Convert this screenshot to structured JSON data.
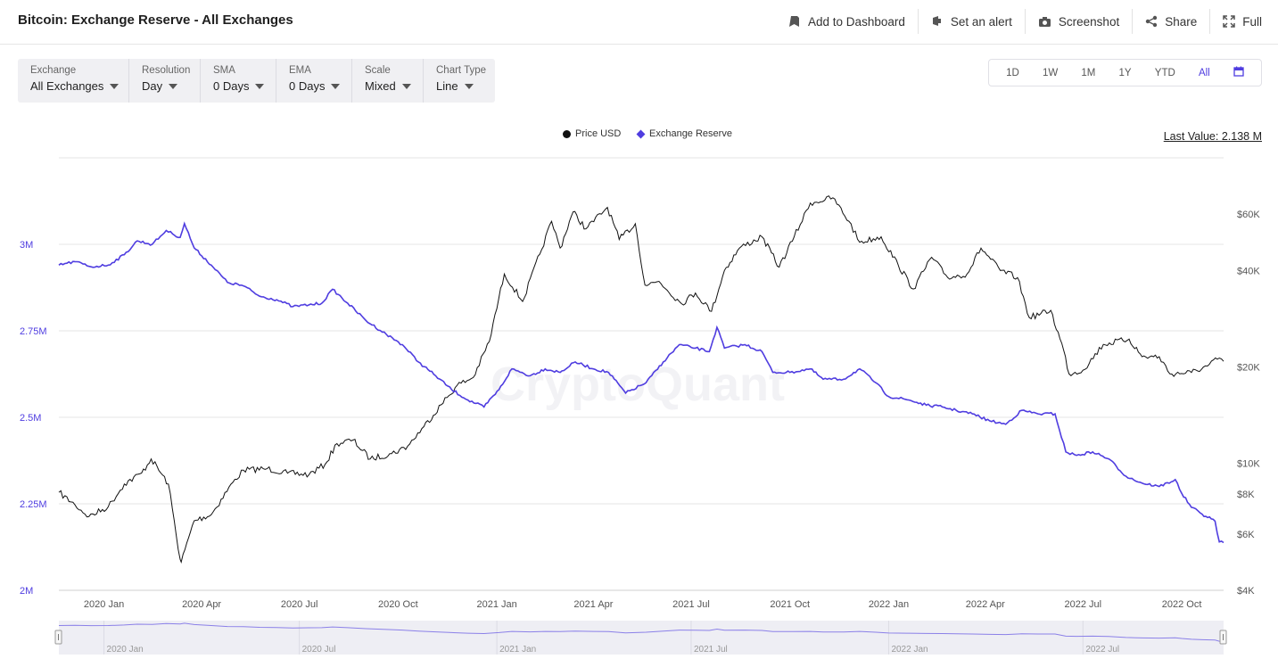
{
  "header": {
    "title": "Bitcoin: Exchange Reserve - All Exchanges",
    "actions": [
      "Add to Dashboard",
      "Set an alert",
      "Screenshot",
      "Share",
      "Full"
    ]
  },
  "controls": [
    {
      "label": "Exchange",
      "value": "All Exchanges"
    },
    {
      "label": "Resolution",
      "value": "Day"
    },
    {
      "label": "SMA",
      "value": "0 Days"
    },
    {
      "label": "EMA",
      "value": "0 Days"
    },
    {
      "label": "Scale",
      "value": "Mixed"
    },
    {
      "label": "Chart Type",
      "value": "Line"
    }
  ],
  "ranges": [
    "1D",
    "1W",
    "1M",
    "1Y",
    "YTD",
    "All"
  ],
  "active_range": "All",
  "last_value": "Last Value: 2.138 M",
  "watermark": "CryptoQuant",
  "colors": {
    "reserve": "#4f3de0",
    "price": "#111111",
    "accent": "#4f3de0"
  },
  "chart_data": {
    "type": "line",
    "legend": [
      "Price USD",
      "Exchange Reserve"
    ],
    "x_ticks": [
      "2020 Jan",
      "2020 Apr",
      "2020 Jul",
      "2020 Oct",
      "2021 Jan",
      "2021 Apr",
      "2021 Jul",
      "2021 Oct",
      "2022 Jan",
      "2022 Apr",
      "2022 Jul",
      "2022 Oct"
    ],
    "navigator_ticks": [
      "2020 Jan",
      "2020 Jul",
      "2021 Jan",
      "2021 Jul",
      "2022 Jan",
      "2022 Jul"
    ],
    "left_axis": {
      "ticks": [
        "2M",
        "2.25M",
        "2.5M",
        "2.75M",
        "3M"
      ],
      "values": [
        2.0,
        2.25,
        2.5,
        2.75,
        3.0
      ],
      "range": [
        2.0,
        3.25
      ],
      "unit": "M"
    },
    "right_axis": {
      "scale": "log",
      "ticks": [
        "$4K",
        "$6K",
        "$8K",
        "$10K",
        "$20K",
        "$40K",
        "$60K"
      ],
      "values": [
        4000,
        6000,
        8000,
        10000,
        20000,
        40000,
        60000
      ],
      "range": [
        4000,
        90000
      ]
    },
    "x_range": [
      "2019-11-20",
      "2022-11-09"
    ],
    "series": [
      {
        "name": "Exchange Reserve",
        "unit": "M BTC",
        "points": [
          [
            "2019-11-20",
            2.94
          ],
          [
            "2019-12-05",
            2.95
          ],
          [
            "2019-12-20",
            2.935
          ],
          [
            "2020-01-05",
            2.94
          ],
          [
            "2020-01-20",
            2.97
          ],
          [
            "2020-02-01",
            3.01
          ],
          [
            "2020-02-15",
            3.0
          ],
          [
            "2020-02-28",
            3.04
          ],
          [
            "2020-03-05",
            3.03
          ],
          [
            "2020-03-12",
            3.02
          ],
          [
            "2020-03-16",
            3.06
          ],
          [
            "2020-03-25",
            2.99
          ],
          [
            "2020-04-10",
            2.94
          ],
          [
            "2020-04-25",
            2.89
          ],
          [
            "2020-05-10",
            2.88
          ],
          [
            "2020-05-25",
            2.85
          ],
          [
            "2020-06-10",
            2.84
          ],
          [
            "2020-06-25",
            2.82
          ],
          [
            "2020-07-10",
            2.825
          ],
          [
            "2020-07-22",
            2.83
          ],
          [
            "2020-08-01",
            2.87
          ],
          [
            "2020-08-15",
            2.83
          ],
          [
            "2020-09-01",
            2.78
          ],
          [
            "2020-09-20",
            2.74
          ],
          [
            "2020-10-05",
            2.71
          ],
          [
            "2020-10-20",
            2.66
          ],
          [
            "2020-11-05",
            2.62
          ],
          [
            "2020-11-20",
            2.58
          ],
          [
            "2020-12-05",
            2.55
          ],
          [
            "2020-12-20",
            2.53
          ],
          [
            "2021-01-03",
            2.58
          ],
          [
            "2021-01-15",
            2.64
          ],
          [
            "2021-02-01",
            2.62
          ],
          [
            "2021-02-15",
            2.64
          ],
          [
            "2021-03-01",
            2.63
          ],
          [
            "2021-03-15",
            2.66
          ],
          [
            "2021-04-01",
            2.64
          ],
          [
            "2021-04-15",
            2.63
          ],
          [
            "2021-05-01",
            2.57
          ],
          [
            "2021-05-20",
            2.6
          ],
          [
            "2021-06-05",
            2.66
          ],
          [
            "2021-06-20",
            2.71
          ],
          [
            "2021-07-05",
            2.7
          ],
          [
            "2021-07-18",
            2.69
          ],
          [
            "2021-07-25",
            2.76
          ],
          [
            "2021-08-01",
            2.7
          ],
          [
            "2021-08-20",
            2.71
          ],
          [
            "2021-09-05",
            2.69
          ],
          [
            "2021-09-15",
            2.63
          ],
          [
            "2021-10-01",
            2.63
          ],
          [
            "2021-10-20",
            2.64
          ],
          [
            "2021-11-01",
            2.61
          ],
          [
            "2021-11-20",
            2.61
          ],
          [
            "2021-12-05",
            2.64
          ],
          [
            "2021-12-20",
            2.6
          ],
          [
            "2022-01-01",
            2.56
          ],
          [
            "2022-01-20",
            2.55
          ],
          [
            "2022-02-05",
            2.535
          ],
          [
            "2022-02-20",
            2.53
          ],
          [
            "2022-03-05",
            2.52
          ],
          [
            "2022-03-20",
            2.51
          ],
          [
            "2022-04-05",
            2.49
          ],
          [
            "2022-04-20",
            2.48
          ],
          [
            "2022-05-05",
            2.52
          ],
          [
            "2022-05-20",
            2.51
          ],
          [
            "2022-06-05",
            2.51
          ],
          [
            "2022-06-15",
            2.4
          ],
          [
            "2022-06-25",
            2.39
          ],
          [
            "2022-07-10",
            2.4
          ],
          [
            "2022-07-25",
            2.38
          ],
          [
            "2022-08-10",
            2.33
          ],
          [
            "2022-08-25",
            2.31
          ],
          [
            "2022-09-10",
            2.3
          ],
          [
            "2022-09-25",
            2.32
          ],
          [
            "2022-10-01",
            2.28
          ],
          [
            "2022-10-10",
            2.24
          ],
          [
            "2022-10-20",
            2.22
          ],
          [
            "2022-11-01",
            2.2
          ],
          [
            "2022-11-05",
            2.14
          ],
          [
            "2022-11-09",
            2.138
          ]
        ]
      },
      {
        "name": "Price USD",
        "unit": "USD",
        "points": [
          [
            "2019-11-20",
            8100
          ],
          [
            "2019-12-05",
            7400
          ],
          [
            "2019-12-18",
            6800
          ],
          [
            "2020-01-05",
            7300
          ],
          [
            "2020-01-20",
            8600
          ],
          [
            "2020-02-05",
            9300
          ],
          [
            "2020-02-14",
            10300
          ],
          [
            "2020-03-01",
            8600
          ],
          [
            "2020-03-12",
            5000
          ],
          [
            "2020-03-13",
            4900
          ],
          [
            "2020-03-25",
            6600
          ],
          [
            "2020-04-10",
            6900
          ],
          [
            "2020-04-30",
            8700
          ],
          [
            "2020-05-10",
            9500
          ],
          [
            "2020-06-01",
            9600
          ],
          [
            "2020-06-20",
            9300
          ],
          [
            "2020-07-10",
            9200
          ],
          [
            "2020-07-25",
            9900
          ],
          [
            "2020-08-05",
            11500
          ],
          [
            "2020-08-20",
            11800
          ],
          [
            "2020-09-05",
            10300
          ],
          [
            "2020-09-25",
            10700
          ],
          [
            "2020-10-10",
            11300
          ],
          [
            "2020-10-25",
            13000
          ],
          [
            "2020-11-10",
            15200
          ],
          [
            "2020-11-25",
            17500
          ],
          [
            "2020-12-10",
            18500
          ],
          [
            "2020-12-25",
            24000
          ],
          [
            "2021-01-08",
            39000
          ],
          [
            "2021-01-25",
            32000
          ],
          [
            "2021-02-10",
            45000
          ],
          [
            "2021-02-21",
            57000
          ],
          [
            "2021-03-01",
            47000
          ],
          [
            "2021-03-13",
            61000
          ],
          [
            "2021-03-25",
            54000
          ],
          [
            "2021-04-14",
            63000
          ],
          [
            "2021-04-25",
            50000
          ],
          [
            "2021-05-10",
            56000
          ],
          [
            "2021-05-19",
            36000
          ],
          [
            "2021-06-01",
            37000
          ],
          [
            "2021-06-22",
            31500
          ],
          [
            "2021-07-05",
            34000
          ],
          [
            "2021-07-20",
            29800
          ],
          [
            "2021-08-01",
            40000
          ],
          [
            "2021-08-15",
            47000
          ],
          [
            "2021-09-05",
            51000
          ],
          [
            "2021-09-21",
            41000
          ],
          [
            "2021-10-05",
            51000
          ],
          [
            "2021-10-20",
            65000
          ],
          [
            "2021-11-10",
            67500
          ],
          [
            "2021-11-25",
            57000
          ],
          [
            "2021-12-05",
            49000
          ],
          [
            "2021-12-25",
            51000
          ],
          [
            "2022-01-10",
            41500
          ],
          [
            "2022-01-24",
            35000
          ],
          [
            "2022-02-10",
            44000
          ],
          [
            "2022-02-25",
            38000
          ],
          [
            "2022-03-15",
            39000
          ],
          [
            "2022-03-28",
            47000
          ],
          [
            "2022-04-15",
            40000
          ],
          [
            "2022-05-01",
            38000
          ],
          [
            "2022-05-12",
            28500
          ],
          [
            "2022-06-01",
            30000
          ],
          [
            "2022-06-13",
            22500
          ],
          [
            "2022-06-18",
            19000
          ],
          [
            "2022-07-01",
            19500
          ],
          [
            "2022-07-20",
            23500
          ],
          [
            "2022-08-13",
            24400
          ],
          [
            "2022-08-25",
            21500
          ],
          [
            "2022-09-10",
            21500
          ],
          [
            "2022-09-20",
            19000
          ],
          [
            "2022-10-10",
            19200
          ],
          [
            "2022-10-25",
            20100
          ],
          [
            "2022-11-05",
            21300
          ],
          [
            "2022-11-09",
            20800
          ]
        ]
      }
    ]
  }
}
